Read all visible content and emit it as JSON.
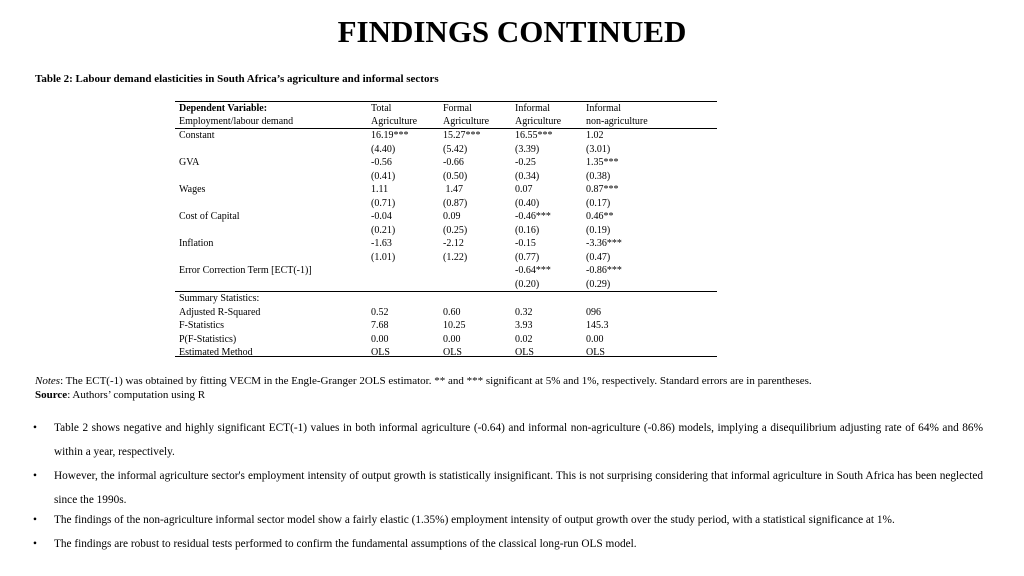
{
  "header": {
    "title": "FINDINGS CONTINUED"
  },
  "table": {
    "caption": "Table 2: Labour demand elasticities in South Africa’s agriculture and informal sectors",
    "head_label": [
      "Dependent Variable:",
      "Employment/labour demand"
    ],
    "columns": [
      [
        "Total",
        "Agriculture"
      ],
      [
        "Formal",
        "Agriculture"
      ],
      [
        "Informal",
        "Agriculture"
      ],
      [
        "Informal",
        "non-agriculture"
      ]
    ],
    "rows": [
      [
        "Constant",
        "16.19***",
        "15.27***",
        "16.55***",
        "1.02"
      ],
      [
        null,
        "(4.40)",
        "(5.42)",
        "(3.39)",
        "(3.01)"
      ],
      [
        "GVA",
        "-0.56",
        "-0.66",
        "-0.25",
        "1.35***"
      ],
      [
        null,
        "(0.41)",
        "(0.50)",
        "(0.34)",
        "(0.38)"
      ],
      [
        "Wages",
        "1.11",
        " 1.47",
        "0.07",
        "0.87***"
      ],
      [
        null,
        "(0.71)",
        "(0.87)",
        "(0.40)",
        "(0.17)"
      ],
      [
        "Cost of Capital",
        "-0.04",
        "0.09",
        "-0.46***",
        "0.46**"
      ],
      [
        null,
        "(0.21)",
        "(0.25)",
        "(0.16)",
        "(0.19)"
      ],
      [
        "Inflation",
        "-1.63",
        "-2.12",
        "-0.15",
        "-3.36***"
      ],
      [
        null,
        "(1.01)",
        "(1.22)",
        "(0.77)",
        "(0.47)"
      ],
      [
        "Error Correction Term [ECT(-1)]",
        null,
        null,
        "-0.64***",
        "-0.86***"
      ],
      [
        null,
        null,
        null,
        "(0.20)",
        "(0.29)"
      ]
    ],
    "summary_rows": [
      [
        "Summary Statistics:",
        null,
        null,
        null,
        null
      ],
      [
        "Adjusted R-Squared",
        "0.52",
        "0.60",
        "0.32",
        "096"
      ],
      [
        "F-Statistics",
        "7.68",
        "10.25",
        "3.93",
        "145.3"
      ],
      [
        "P(F-Statistics)",
        "0.00",
        "0.00",
        "0.02",
        "0.00"
      ],
      [
        "Estimated Method",
        "OLS",
        "OLS",
        "OLS",
        "OLS"
      ]
    ]
  },
  "notes": {
    "label": "Notes",
    "text": ": The ECT(-1) was obtained by fitting VECM in the Engle-Granger 2OLS estimator. ** and *** significant at 5% and 1%, respectively. Standard errors are in parentheses."
  },
  "source": {
    "label": "Source",
    "text": ": Authors’ computation using R"
  },
  "bullets": [
    "Table 2 shows negative and highly significant ECT(-1) values in both informal agriculture (-0.64) and informal non-agriculture (-0.86) models, implying a disequilibrium adjusting rate of 64% and 86% within a year, respectively.",
    "However, the informal agriculture sector's employment intensity of output growth is statistically insignificant. This is not surprising considering that informal agriculture in South Africa has been neglected since the 1990s.",
    "The findings of the non-agriculture informal sector model show a fairly elastic (1.35%) employment intensity of output growth over the study period, with a statistical significance at 1%.",
    "The findings are robust to residual tests performed to confirm the fundamental assumptions of the classical long-run OLS model."
  ]
}
